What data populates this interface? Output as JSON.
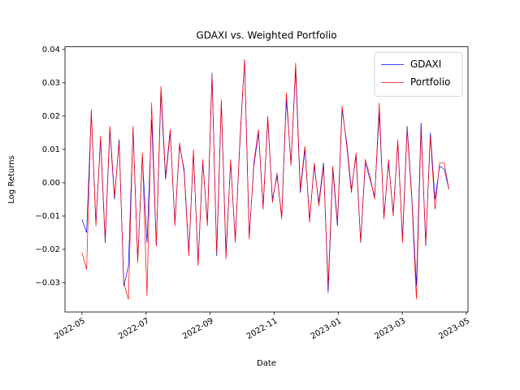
{
  "chart_data": {
    "type": "line",
    "title": "GDAXI vs. Weighted Portfolio",
    "x_label": "Date",
    "y_label": "Log Returns",
    "x": [
      5,
      5.145,
      5.29,
      5.435,
      5.58,
      5.725,
      5.87,
      6.015,
      6.16,
      6.305,
      6.45,
      6.595,
      6.74,
      6.885,
      7.03,
      7.175,
      7.32,
      7.465,
      7.61,
      7.755,
      7.9,
      8.045,
      8.19,
      8.335,
      8.48,
      8.625,
      8.77,
      8.915,
      9.06,
      9.205,
      9.35,
      9.495,
      9.64,
      9.785,
      9.93,
      10.075,
      10.22,
      10.365,
      10.51,
      10.655,
      10.8,
      10.945,
      11.09,
      11.235,
      11.38,
      11.525,
      11.67,
      11.815,
      11.96,
      12.105,
      12.25,
      12.395,
      12.54,
      12.685,
      12.83,
      12.975,
      13.12,
      13.265,
      13.41,
      13.555,
      13.7,
      13.845,
      13.99,
      14.135,
      14.28,
      14.425,
      14.57,
      14.715,
      14.86,
      15.005,
      15.15,
      15.295,
      15.44,
      15.585,
      15.73,
      15.875,
      16.02,
      16.165,
      16.31,
      16.455
    ],
    "series": [
      {
        "name": "GDAXI",
        "color": "#0000ff",
        "values": [
          -0.011,
          -0.015,
          0.021,
          -0.012,
          0.013,
          -0.018,
          0.016,
          -0.005,
          0.013,
          -0.031,
          -0.025,
          0.016,
          -0.023,
          0.008,
          -0.018,
          0.019,
          -0.019,
          0.027,
          0.001,
          0.015,
          -0.012,
          0.011,
          0.004,
          -0.021,
          0.009,
          -0.024,
          0.006,
          -0.012,
          0.033,
          -0.022,
          0.024,
          -0.021,
          0.006,
          -0.017,
          0.012,
          0.037,
          -0.016,
          0.005,
          0.015,
          -0.007,
          0.019,
          -0.005,
          0.002,
          -0.01,
          0.025,
          0.006,
          0.034,
          -0.003,
          0.01,
          -0.011,
          0.005,
          -0.006,
          0.006,
          -0.033,
          0.004,
          -0.013,
          0.022,
          0.012,
          -0.002,
          0.008,
          -0.018,
          0.006,
          0.001,
          -0.004,
          0.021,
          -0.01,
          0.006,
          -0.009,
          0.012,
          -0.017,
          0.017,
          -0.004,
          -0.031,
          0.018,
          -0.019,
          0.015,
          -0.005,
          0.005,
          0.004,
          -0.002
        ]
      },
      {
        "name": "Portfolio",
        "color": "#ff0000",
        "values": [
          -0.021,
          -0.026,
          0.022,
          -0.013,
          0.014,
          -0.017,
          0.017,
          -0.004,
          0.012,
          -0.03,
          -0.035,
          0.017,
          -0.024,
          0.009,
          -0.034,
          0.024,
          -0.019,
          0.029,
          0.002,
          0.016,
          -0.013,
          0.012,
          0.003,
          -0.022,
          0.01,
          -0.025,
          0.007,
          -0.013,
          0.032,
          -0.021,
          0.025,
          -0.023,
          0.007,
          -0.018,
          0.013,
          0.037,
          -0.017,
          0.006,
          0.016,
          -0.008,
          0.02,
          -0.006,
          0.003,
          -0.011,
          0.027,
          0.005,
          0.036,
          -0.002,
          0.011,
          -0.012,
          0.006,
          -0.007,
          0.005,
          -0.031,
          0.005,
          -0.012,
          0.023,
          0.011,
          -0.003,
          0.009,
          -0.018,
          0.007,
          0.002,
          -0.005,
          0.024,
          -0.011,
          0.007,
          -0.01,
          0.013,
          -0.018,
          0.016,
          -0.005,
          -0.035,
          0.016,
          -0.018,
          0.014,
          -0.008,
          0.006,
          0.006,
          -0.002
        ]
      }
    ],
    "xlim": [
      4.47,
      17.05
    ],
    "xticks": [
      {
        "value": 5,
        "label": "2022-05"
      },
      {
        "value": 7,
        "label": "2022-07"
      },
      {
        "value": 9,
        "label": "2022-09"
      },
      {
        "value": 11,
        "label": "2022-11"
      },
      {
        "value": 13,
        "label": "2023-01"
      },
      {
        "value": 15,
        "label": "2023-03"
      },
      {
        "value": 17,
        "label": "2023-05"
      }
    ],
    "ylim": [
      -0.0388,
      0.0408
    ],
    "yticks": [
      {
        "value": -0.03,
        "label": "−0.03"
      },
      {
        "value": -0.02,
        "label": "−0.02"
      },
      {
        "value": -0.01,
        "label": "−0.01"
      },
      {
        "value": 0,
        "label": "0.00"
      },
      0.01,
      0.02,
      0.03,
      0.04
    ],
    "legend": "upper right",
    "grid": false
  }
}
